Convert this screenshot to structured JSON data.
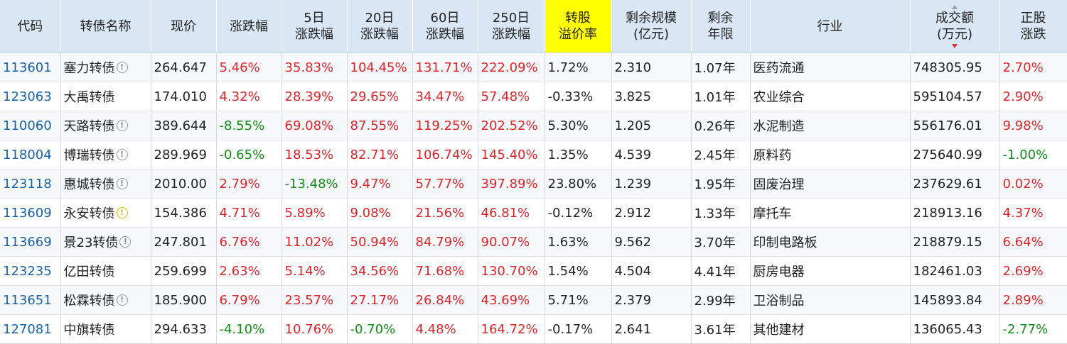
{
  "columns": [
    [
      "代码"
    ],
    [
      "转债名称"
    ],
    [
      "现价"
    ],
    [
      "涨跌幅"
    ],
    [
      "5日",
      "涨跌幅"
    ],
    [
      "20日",
      "涨跌幅"
    ],
    [
      "60日",
      "涨跌幅"
    ],
    [
      "250日",
      "涨跌幅"
    ],
    [
      "转股",
      "溢价率"
    ],
    [
      "剩余规模",
      "(亿元)"
    ],
    [
      "剩余",
      "年限"
    ],
    [
      "行业"
    ],
    [
      "成交额",
      "(万元)"
    ],
    [
      "正股",
      "涨跌"
    ]
  ],
  "colors": {
    "header_bg": "#d9e7f5",
    "highlight_header": "#ffff00",
    "up": "#e0242b",
    "down": "#138a1a",
    "code": "#1a62a8"
  },
  "icons": {
    "info": "info-circle-icon",
    "warning": "warning-circle-icon",
    "sort": "sort-desc-icon"
  },
  "rows": [
    {
      "code": "113601",
      "name": "塞力转债",
      "icon": "info",
      "price": "264.647",
      "chg": "5.46%",
      "chg_dir": "up",
      "d5": "35.83%",
      "d5_dir": "up",
      "d20": "104.45%",
      "d20_dir": "up",
      "d60": "131.71%",
      "d60_dir": "up",
      "d250": "222.09%",
      "d250_dir": "up",
      "premium": "1.72%",
      "remain_scale": "2.310",
      "remain_years": "1.07年",
      "industry": "医药流通",
      "turnover": "748305.95",
      "stock_chg": "2.70%",
      "stock_dir": "up"
    },
    {
      "code": "123063",
      "name": "大禹转债",
      "icon": "",
      "price": "174.010",
      "chg": "4.32%",
      "chg_dir": "up",
      "d5": "28.39%",
      "d5_dir": "up",
      "d20": "29.65%",
      "d20_dir": "up",
      "d60": "34.47%",
      "d60_dir": "up",
      "d250": "57.48%",
      "d250_dir": "up",
      "premium": "-0.33%",
      "remain_scale": "3.825",
      "remain_years": "1.01年",
      "industry": "农业综合",
      "turnover": "595104.57",
      "stock_chg": "2.90%",
      "stock_dir": "up"
    },
    {
      "code": "110060",
      "name": "天路转债",
      "icon": "info",
      "price": "389.644",
      "chg": "-8.55%",
      "chg_dir": "down",
      "d5": "69.08%",
      "d5_dir": "up",
      "d20": "87.55%",
      "d20_dir": "up",
      "d60": "119.25%",
      "d60_dir": "up",
      "d250": "202.52%",
      "d250_dir": "up",
      "premium": "5.30%",
      "remain_scale": "1.205",
      "remain_years": "0.26年",
      "industry": "水泥制造",
      "turnover": "556176.01",
      "stock_chg": "9.98%",
      "stock_dir": "up"
    },
    {
      "code": "118004",
      "name": "博瑞转债",
      "icon": "info",
      "price": "289.969",
      "chg": "-0.65%",
      "chg_dir": "down",
      "d5": "18.53%",
      "d5_dir": "up",
      "d20": "82.71%",
      "d20_dir": "up",
      "d60": "106.74%",
      "d60_dir": "up",
      "d250": "145.40%",
      "d250_dir": "up",
      "premium": "1.35%",
      "remain_scale": "4.539",
      "remain_years": "2.45年",
      "industry": "原料药",
      "turnover": "275640.99",
      "stock_chg": "-1.00%",
      "stock_dir": "down"
    },
    {
      "code": "123118",
      "name": "惠城转债",
      "icon": "info",
      "price": "2010.00",
      "chg": "2.79%",
      "chg_dir": "up",
      "d5": "-13.48%",
      "d5_dir": "down",
      "d20": "9.47%",
      "d20_dir": "up",
      "d60": "57.77%",
      "d60_dir": "up",
      "d250": "397.89%",
      "d250_dir": "up",
      "premium": "23.80%",
      "remain_scale": "1.239",
      "remain_years": "1.95年",
      "industry": "固废治理",
      "turnover": "237629.61",
      "stock_chg": "0.02%",
      "stock_dir": "up"
    },
    {
      "code": "113609",
      "name": "永安转债",
      "icon": "warning",
      "price": "154.386",
      "chg": "4.71%",
      "chg_dir": "up",
      "d5": "5.89%",
      "d5_dir": "up",
      "d20": "9.08%",
      "d20_dir": "up",
      "d60": "21.56%",
      "d60_dir": "up",
      "d250": "46.81%",
      "d250_dir": "up",
      "premium": "-0.12%",
      "remain_scale": "2.912",
      "remain_years": "1.33年",
      "industry": "摩托车",
      "turnover": "218913.16",
      "stock_chg": "4.37%",
      "stock_dir": "up"
    },
    {
      "code": "113669",
      "name": "景23转债",
      "icon": "info",
      "price": "247.801",
      "chg": "6.76%",
      "chg_dir": "up",
      "d5": "11.02%",
      "d5_dir": "up",
      "d20": "50.94%",
      "d20_dir": "up",
      "d60": "84.79%",
      "d60_dir": "up",
      "d250": "90.07%",
      "d250_dir": "up",
      "premium": "1.63%",
      "remain_scale": "9.562",
      "remain_years": "3.70年",
      "industry": "印制电路板",
      "turnover": "218879.15",
      "stock_chg": "6.64%",
      "stock_dir": "up"
    },
    {
      "code": "123235",
      "name": "亿田转债",
      "icon": "",
      "price": "259.699",
      "chg": "2.63%",
      "chg_dir": "up",
      "d5": "5.14%",
      "d5_dir": "up",
      "d20": "34.56%",
      "d20_dir": "up",
      "d60": "71.68%",
      "d60_dir": "up",
      "d250": "130.70%",
      "d250_dir": "up",
      "premium": "1.54%",
      "remain_scale": "4.504",
      "remain_years": "4.41年",
      "industry": "厨房电器",
      "turnover": "182461.03",
      "stock_chg": "2.69%",
      "stock_dir": "up"
    },
    {
      "code": "113651",
      "name": "松霖转债",
      "icon": "info",
      "price": "185.900",
      "chg": "6.79%",
      "chg_dir": "up",
      "d5": "23.57%",
      "d5_dir": "up",
      "d20": "27.17%",
      "d20_dir": "up",
      "d60": "26.84%",
      "d60_dir": "up",
      "d250": "43.69%",
      "d250_dir": "up",
      "premium": "5.71%",
      "remain_scale": "2.379",
      "remain_years": "2.99年",
      "industry": "卫浴制品",
      "turnover": "145893.84",
      "stock_chg": "2.89%",
      "stock_dir": "up"
    },
    {
      "code": "127081",
      "name": "中旗转债",
      "icon": "",
      "price": "294.633",
      "chg": "-4.10%",
      "chg_dir": "down",
      "d5": "10.76%",
      "d5_dir": "up",
      "d20": "-0.70%",
      "d20_dir": "down",
      "d60": "4.48%",
      "d60_dir": "up",
      "d250": "164.72%",
      "d250_dir": "up",
      "premium": "-0.17%",
      "remain_scale": "2.641",
      "remain_years": "3.61年",
      "industry": "其他建材",
      "turnover": "136065.43",
      "stock_chg": "-2.77%",
      "stock_dir": "down"
    }
  ]
}
